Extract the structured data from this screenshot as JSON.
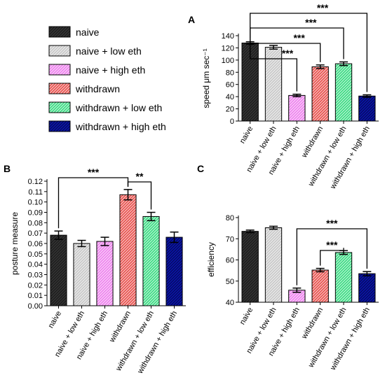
{
  "legend": [
    {
      "label": "naive",
      "color": "#333333",
      "pattern": "hatch-dark"
    },
    {
      "label": "naive + low eth",
      "color": "#c8c8c8",
      "pattern": "hatch-light"
    },
    {
      "label": "naive + high eth",
      "color": "#ee82ee",
      "pattern": "hatch-light"
    },
    {
      "label": "withdrawn",
      "color": "#e8534f",
      "pattern": "hatch-light"
    },
    {
      "label": "withdrawn + low eth",
      "color": "#3ddc84",
      "pattern": "hatch-light"
    },
    {
      "label": "withdrawn + high eth",
      "color": "#0a14a8",
      "pattern": "hatch-dark"
    }
  ],
  "chart_data": [
    {
      "panel": "A",
      "type": "bar",
      "categories": [
        "naive",
        "naive + low eth",
        "naive + high eth",
        "withdrawn",
        "withdrawn + low eth",
        "withdrawn + high eth"
      ],
      "values": [
        128,
        121,
        42,
        89,
        94,
        41
      ],
      "errors": [
        2,
        3,
        2,
        3,
        3,
        2
      ],
      "ylabel": "speed μm sec⁻¹",
      "ylim": [
        0,
        140
      ],
      "yticks": [
        0,
        20,
        40,
        60,
        80,
        100,
        120,
        140
      ],
      "ytick_labels": [
        "0",
        "20",
        "40",
        "60",
        "80",
        "100",
        "120",
        "140"
      ],
      "significance": [
        {
          "from": 0,
          "to": 2,
          "label": "***"
        },
        {
          "from": 0,
          "to": 3,
          "label": "***"
        },
        {
          "from": 0,
          "to": 4,
          "label": "***"
        },
        {
          "from": 0,
          "to": 5,
          "label": "***"
        }
      ]
    },
    {
      "panel": "B",
      "type": "bar",
      "categories": [
        "naive",
        "naive + low eth",
        "naive + high eth",
        "withdrawn",
        "withdrawn + low eth",
        "withdrawn + high eth"
      ],
      "values": [
        0.068,
        0.06,
        0.062,
        0.107,
        0.086,
        0.066
      ],
      "errors": [
        0.004,
        0.003,
        0.004,
        0.005,
        0.004,
        0.005
      ],
      "ylabel": "posture measure",
      "ylim": [
        0,
        0.12
      ],
      "yticks": [
        0,
        0.01,
        0.02,
        0.03,
        0.04,
        0.05,
        0.06,
        0.07,
        0.08,
        0.09,
        0.1,
        0.11,
        0.12
      ],
      "ytick_labels": [
        "0.00",
        "0.01",
        "0.02",
        "0.03",
        "0.04",
        "0.05",
        "0.06",
        "0.07",
        "0.08",
        "0.09",
        "0.10",
        "0.11",
        "0.12"
      ],
      "significance": [
        {
          "from": 0,
          "to": 3,
          "label": "***"
        },
        {
          "from": 3,
          "to": 4,
          "label": "**"
        }
      ]
    },
    {
      "panel": "C",
      "type": "bar",
      "categories": [
        "naive",
        "naive + low eth",
        "naive + high eth",
        "withdrawn",
        "withdrawn + low eth",
        "withdrawn + high eth"
      ],
      "values": [
        73.5,
        75.2,
        45.7,
        55.2,
        63.5,
        53.5
      ],
      "errors": [
        0.6,
        0.7,
        1.0,
        0.8,
        0.9,
        1.0
      ],
      "ylabel": "efficiency",
      "ylim": [
        40,
        80
      ],
      "yticks": [
        40,
        50,
        60,
        70,
        80
      ],
      "ytick_labels": [
        "40",
        "50",
        "60",
        "70",
        "80"
      ],
      "significance": [
        {
          "from": 2,
          "to": 5,
          "label": "***"
        },
        {
          "from": 3,
          "to": 4,
          "label": "***"
        }
      ]
    }
  ]
}
